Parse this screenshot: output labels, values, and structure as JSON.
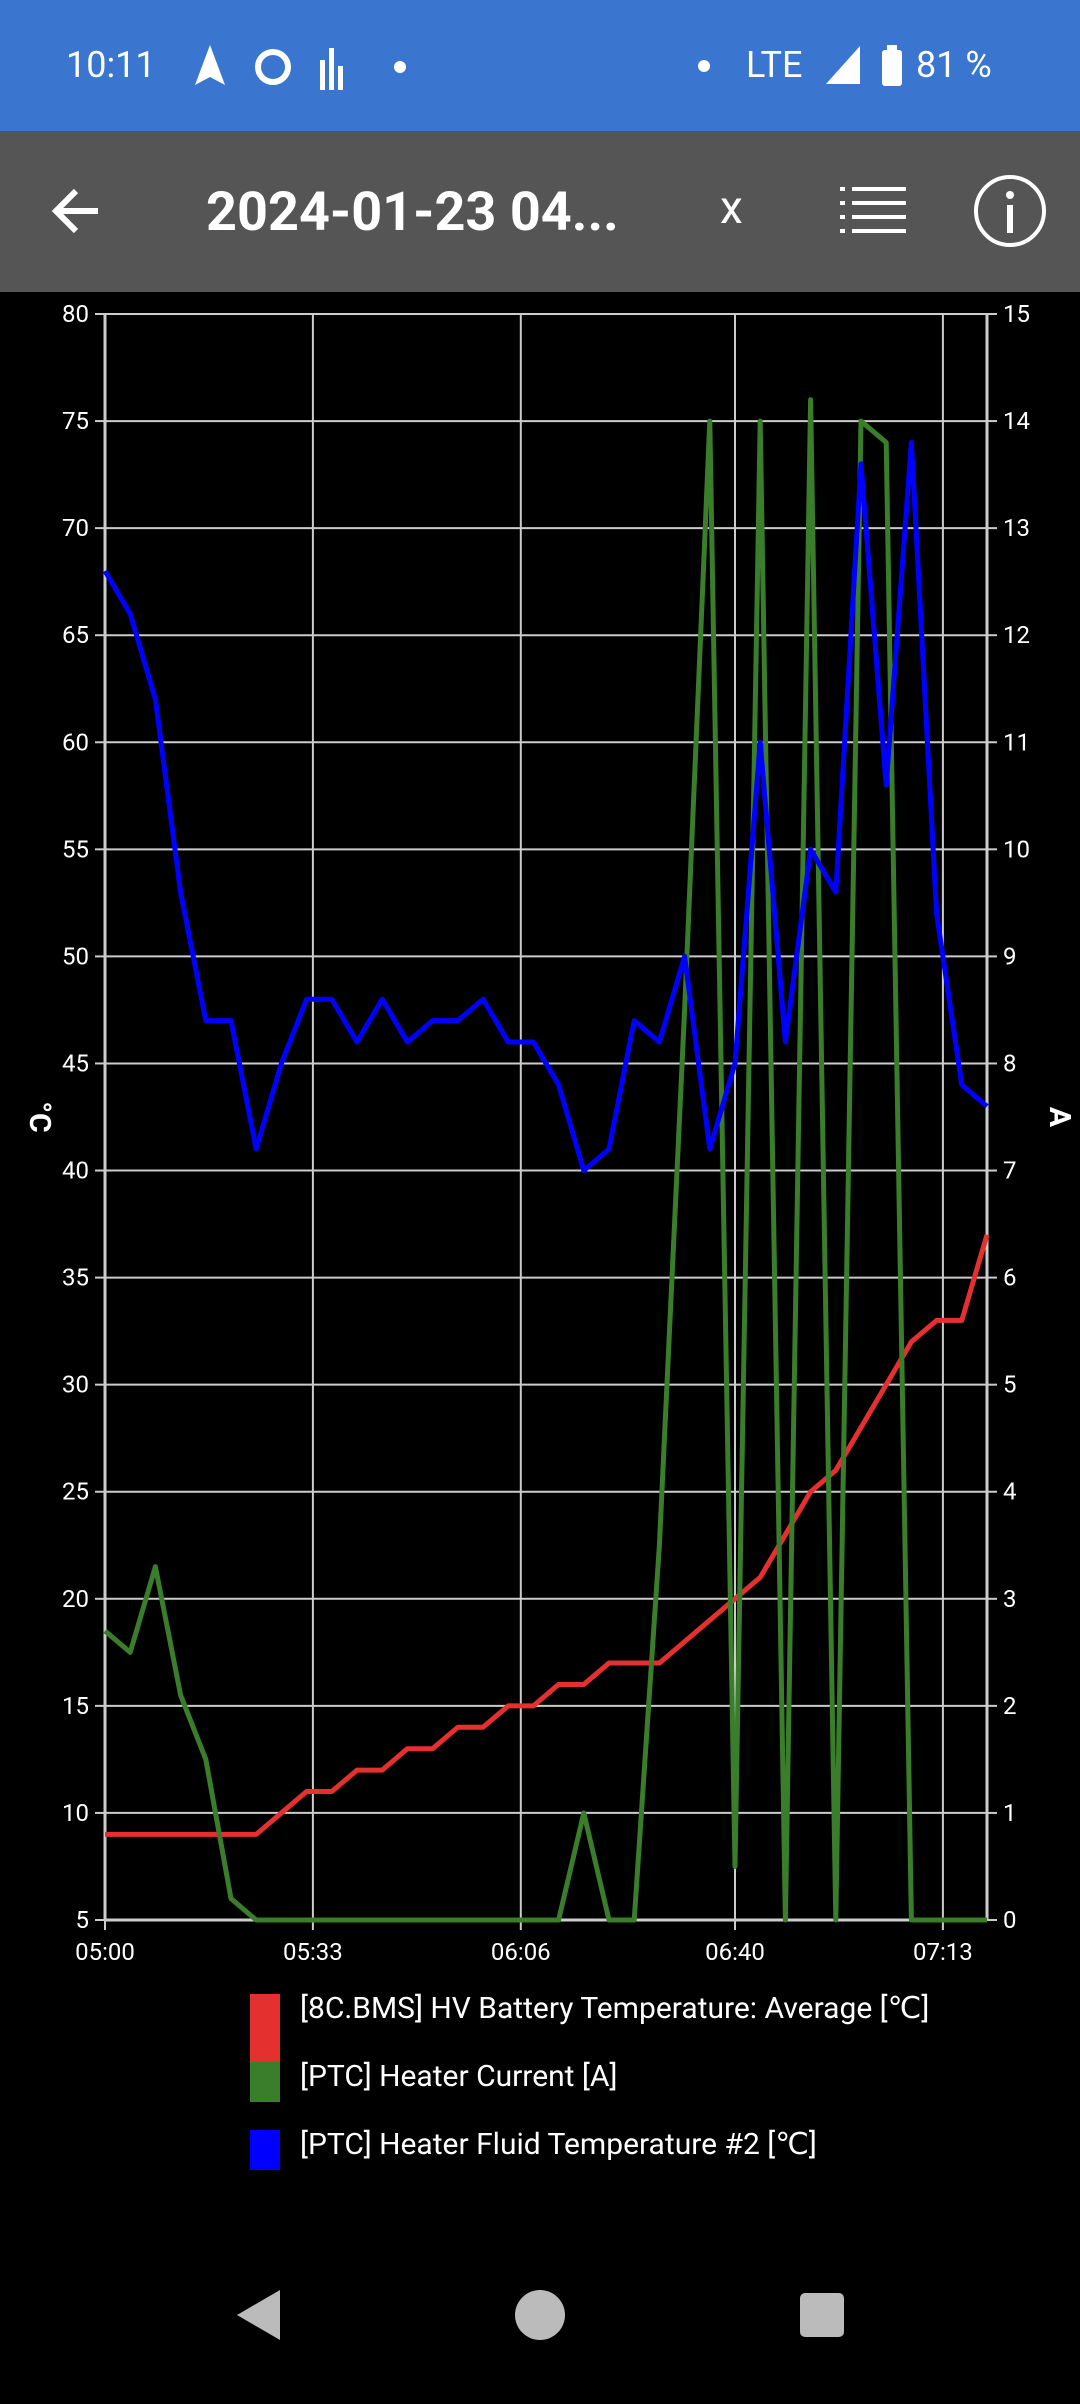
{
  "status_bar": {
    "time": "10:11",
    "network": "LTE",
    "battery": "81 %"
  },
  "app_bar": {
    "title": "2024-01-23 04...",
    "close": "x"
  },
  "chart_data": {
    "type": "line",
    "y_label": "°C",
    "y2_label": "A",
    "x": [
      "05:00",
      "05:04",
      "05:08",
      "05:12",
      "05:16",
      "05:20",
      "05:24",
      "05:28",
      "05:32",
      "05:36",
      "05:40",
      "05:44",
      "05:48",
      "05:52",
      "05:56",
      "06:00",
      "06:04",
      "06:08",
      "06:12",
      "06:16",
      "06:20",
      "06:24",
      "06:28",
      "06:32",
      "06:36",
      "06:40",
      "06:44",
      "06:48",
      "06:52",
      "06:56",
      "07:00",
      "07:04",
      "07:08",
      "07:12",
      "07:16",
      "07:20"
    ],
    "xlim": [
      "05:00",
      "07:20"
    ],
    "xticks": [
      "05:00",
      "05:33",
      "06:06",
      "06:40",
      "07:13"
    ],
    "ylim": [
      5,
      80
    ],
    "yticks": [
      5,
      10,
      15,
      20,
      25,
      30,
      35,
      40,
      45,
      50,
      55,
      60,
      65,
      70,
      75,
      80
    ],
    "y2lim": [
      0,
      15
    ],
    "y2ticks": [
      0,
      1,
      2,
      3,
      4,
      5,
      6,
      7,
      8,
      9,
      10,
      11,
      12,
      13,
      14,
      15
    ],
    "grid": true,
    "series": [
      {
        "name": "[8C.BMS] HV Battery Temperature: Average [℃]",
        "color": "#e53030",
        "values": [
          9,
          9,
          9,
          9,
          9,
          9,
          9,
          10,
          11,
          11,
          12,
          12,
          13,
          13,
          14,
          14,
          15,
          15,
          16,
          16,
          17,
          17,
          17,
          18,
          19,
          20,
          21,
          23,
          25,
          26,
          28,
          30,
          32,
          33,
          33,
          37
        ]
      },
      {
        "name": "[PTC] Heater Current [A]",
        "color": "#3a7d2a",
        "axis": "y2",
        "values": [
          2.7,
          2.5,
          3.3,
          2.1,
          1.5,
          0.2,
          0,
          0,
          0,
          0,
          0,
          0,
          0,
          0,
          0,
          0,
          0,
          0,
          0,
          1.0,
          0,
          0,
          3.5,
          8.5,
          14,
          0.5,
          14,
          0,
          14.2,
          0,
          14,
          13.8,
          0,
          0,
          0,
          0
        ]
      },
      {
        "name": "[PTC] Heater Fluid Temperature #2 [℃]",
        "color": "#0000ff",
        "values": [
          68,
          66,
          62,
          53,
          47,
          47,
          41,
          45,
          48,
          48,
          46,
          48,
          46,
          47,
          47,
          48,
          46,
          46,
          44,
          40,
          41,
          47,
          46,
          50,
          41,
          45,
          60,
          46,
          55,
          53,
          73,
          58,
          74,
          52,
          44,
          43
        ]
      }
    ]
  }
}
